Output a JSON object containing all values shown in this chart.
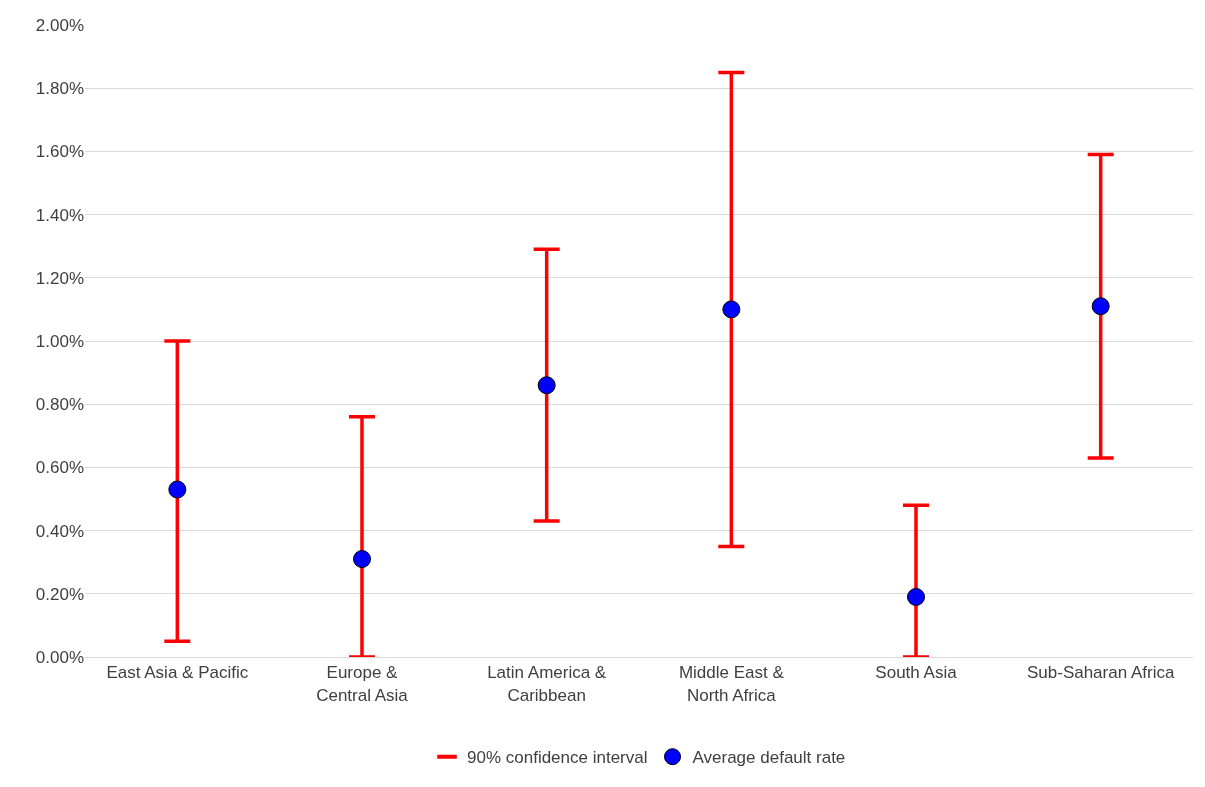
{
  "chart_data": {
    "type": "scatter",
    "categories": [
      "East Asia & Pacific",
      "Europe &\nCentral Asia",
      "Latin America &\nCaribbean",
      "Middle East &\nNorth Africa",
      "South Asia",
      "Sub-Saharan Africa"
    ],
    "series": [
      {
        "name": "90% confidence interval",
        "color": "#ff0000",
        "values": [
          null,
          null,
          null,
          null,
          null,
          null
        ]
      },
      {
        "name": "Average default rate",
        "color": "#0000ff",
        "values": [
          0.53,
          0.31,
          0.86,
          1.1,
          0.19,
          1.11
        ],
        "errors": [
          [
            0.05,
            1.0
          ],
          [
            0.0,
            0.76
          ],
          [
            0.43,
            1.29
          ],
          [
            0.35,
            1.85
          ],
          [
            0.0,
            0.48
          ],
          [
            0.63,
            1.59
          ]
        ]
      }
    ],
    "ylim": [
      0,
      2.0
    ],
    "yticks": [
      {
        "value": 0,
        "label": "0.00%"
      },
      {
        "value": 0.2,
        "label": "0.20%"
      },
      {
        "value": 0.4,
        "label": "0.40%"
      },
      {
        "value": 0.6,
        "label": "0.60%"
      },
      {
        "value": 0.8,
        "label": "0.80%"
      },
      {
        "value": 1.0,
        "label": "1.00%"
      },
      {
        "value": 1.2,
        "label": "1.20%"
      },
      {
        "value": 1.4,
        "label": "1.40%"
      },
      {
        "value": 1.6,
        "label": "1.60%"
      },
      {
        "value": 1.8,
        "label": "1.80%"
      },
      {
        "value": 2.0,
        "label": "2.00%"
      }
    ],
    "grid": "y",
    "legend": "bottom",
    "marker": "circle"
  }
}
